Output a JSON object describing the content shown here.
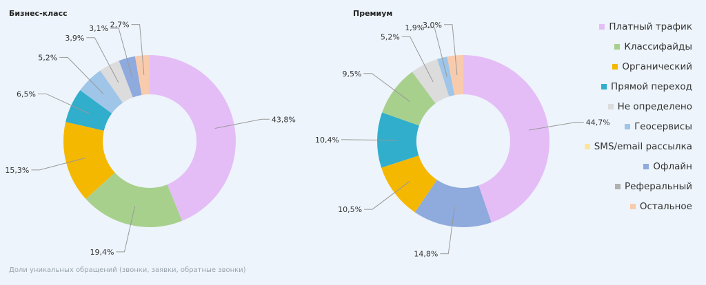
{
  "footnote": "Доли уникальных обращений (звонки, заявки, обратные звонки)",
  "legend": [
    {
      "label": "Платный трафик",
      "color": "#e4bdf7"
    },
    {
      "label": "Классифайды",
      "color": "#a8d08d"
    },
    {
      "label": "Органический",
      "color": "#f5b800"
    },
    {
      "label": "Прямой переход",
      "color": "#31aecc"
    },
    {
      "label": "Не определено",
      "color": "#dcdcdc"
    },
    {
      "label": "Геосервисы",
      "color": "#9fc5e8"
    },
    {
      "label": "SMS/email рассылка",
      "color": "#fde49a"
    },
    {
      "label": "Офлайн",
      "color": "#8faadc"
    },
    {
      "label": "Реферальный",
      "color": "#b0b0b0"
    },
    {
      "label": "Остальное",
      "color": "#f8cbad"
    }
  ],
  "chart_data": [
    {
      "type": "pie",
      "title": "Бизнес-класс",
      "slices": [
        {
          "category": "Платный трафик",
          "value": 43.8,
          "label": "43,8%"
        },
        {
          "category": "Классифайды",
          "value": 19.4,
          "label": "19,4%"
        },
        {
          "category": "Органический",
          "value": 15.3,
          "label": "15,3%"
        },
        {
          "category": "Прямой переход",
          "value": 6.5,
          "label": "6,5%"
        },
        {
          "category": "Геосервисы",
          "value": 5.2,
          "label": "5,2%"
        },
        {
          "category": "Не определено",
          "value": 3.9,
          "label": "3,9%"
        },
        {
          "category": "Офлайн",
          "value": 3.1,
          "label": "3,1%"
        },
        {
          "category": "Остальное",
          "value": 2.7,
          "label": "2,7%"
        }
      ]
    },
    {
      "type": "pie",
      "title": "Премиум",
      "slices": [
        {
          "category": "Платный трафик",
          "value": 44.7,
          "label": "44,7%"
        },
        {
          "category": "Офлайн",
          "value": 14.8,
          "label": "14,8%"
        },
        {
          "category": "Органический",
          "value": 10.5,
          "label": "10,5%"
        },
        {
          "category": "Прямой переход",
          "value": 10.4,
          "label": "10,4%"
        },
        {
          "category": "Классифайды",
          "value": 9.5,
          "label": "9,5%"
        },
        {
          "category": "Не определено",
          "value": 5.2,
          "label": "5,2%"
        },
        {
          "category": "Геосервисы",
          "value": 1.9,
          "label": "1,9%"
        },
        {
          "category": "Остальное",
          "value": 3.0,
          "label": "3,0%"
        }
      ]
    }
  ]
}
